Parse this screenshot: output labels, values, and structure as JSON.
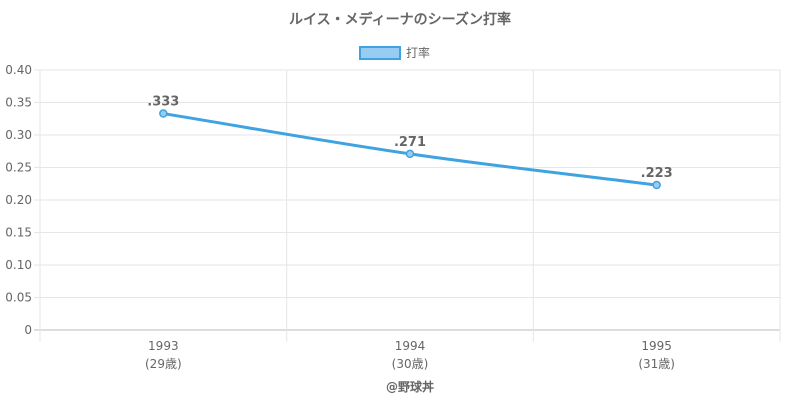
{
  "chart_data": {
    "type": "line",
    "title": "ルイス・メディーナのシーズン打率",
    "categories": [
      "1993",
      "1994",
      "1995"
    ],
    "category_sublabels": [
      "(29歳)",
      "(30歳)",
      "(31歳)"
    ],
    "series": [
      {
        "name": "打率",
        "values": [
          0.333,
          0.271,
          0.223
        ],
        "labels": [
          ".333",
          ".271",
          ".223"
        ],
        "color": "#3ea3e0",
        "fill_color": "#99ccf2"
      }
    ],
    "ylim": [
      0,
      0.4
    ],
    "yticks": [
      "0",
      "0.05",
      "0.10",
      "0.15",
      "0.20",
      "0.25",
      "0.30",
      "0.35",
      "0.40"
    ],
    "legend_position": "top-center",
    "grid": true
  },
  "footer": {
    "credit": "@野球丼"
  }
}
